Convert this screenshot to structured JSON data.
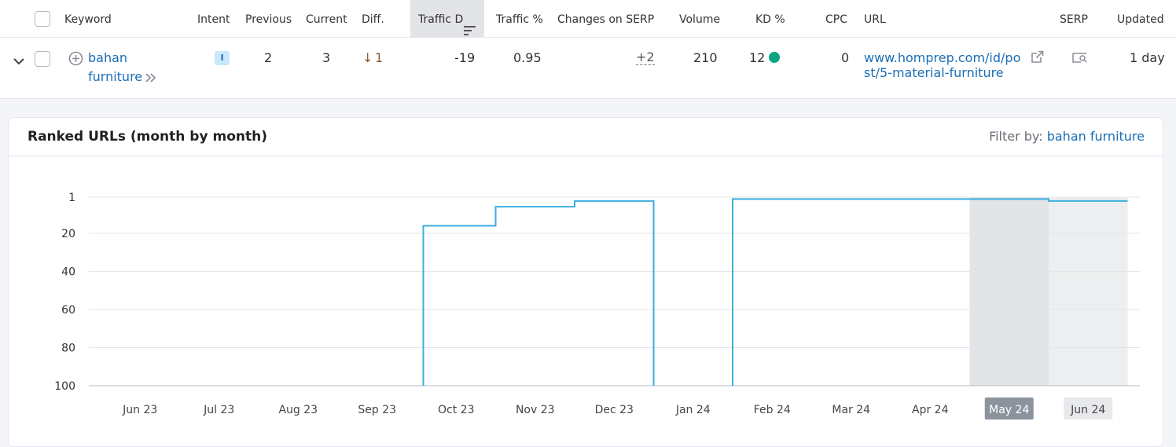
{
  "table": {
    "headers": {
      "keyword": "Keyword",
      "intent": "Intent",
      "previous": "Previous",
      "current": "Current",
      "diff": "Diff.",
      "traffic_d": "Traffic D",
      "traffic_pct": "Traffic %",
      "changes_serp": "Changes on SERP",
      "volume": "Volume",
      "kd": "KD %",
      "cpc": "CPC",
      "url": "URL",
      "serp": "SERP",
      "updated": "Updated"
    },
    "row": {
      "keyword_line1": "bahan",
      "keyword_line2": "furniture",
      "intent_badge": "I",
      "previous": "2",
      "current": "3",
      "diff_arrow": "↓",
      "diff_value": "1",
      "traffic_d": "-19",
      "traffic_pct": "0.95",
      "changes_serp": "+2",
      "volume": "210",
      "kd": "12",
      "cpc": "0",
      "url_line1": "www.homprep.com/id/po",
      "url_line2": "st/5-material-furniture",
      "updated": "1 day"
    }
  },
  "panel": {
    "title": "Ranked URLs (month by month)",
    "filter_label": "Filter by:",
    "filter_value": "bahan furniture"
  },
  "colors": {
    "accent_link": "#1a6eb5",
    "line": "#3aaee0",
    "kd_dot": "#0aa77f",
    "highlight_month": "#8b939d"
  },
  "chart_data": {
    "type": "line",
    "title": "Ranked URLs (month by month)",
    "y_ticks": [
      1,
      20,
      40,
      60,
      80,
      100
    ],
    "ylim": [
      100,
      1
    ],
    "y_inverted": true,
    "grid": true,
    "categories": [
      "Jun 23",
      "Jul 23",
      "Aug 23",
      "Sep 23",
      "Oct 23",
      "Nov 23",
      "Dec 23",
      "Jan 24",
      "Feb 24",
      "Mar 24",
      "Apr 24",
      "May 24",
      "Jun 24"
    ],
    "highlighted_months": [
      "May 24",
      "Jun 24"
    ],
    "selected_month": "May 24",
    "series": [
      {
        "step": true,
        "values": [
          null,
          null,
          null,
          null,
          16,
          6,
          3,
          null,
          2,
          2,
          2,
          2,
          3
        ]
      }
    ]
  }
}
